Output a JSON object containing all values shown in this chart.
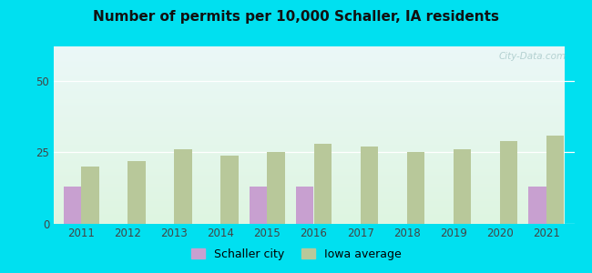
{
  "title": "Number of permits per 10,000 Schaller, IA residents",
  "years": [
    2011,
    2012,
    2013,
    2014,
    2015,
    2016,
    2017,
    2018,
    2019,
    2020,
    2021
  ],
  "schaller_values": [
    13,
    0,
    0,
    0,
    13,
    13,
    0,
    0,
    0,
    0,
    13
  ],
  "iowa_values": [
    20,
    22,
    26,
    24,
    25,
    28,
    27,
    25,
    26,
    29,
    31
  ],
  "schaller_color": "#c8a0d0",
  "iowa_color": "#b8c89a",
  "background_outer": "#00e0f0",
  "ylim": [
    0,
    62
  ],
  "yticks": [
    0,
    25,
    50
  ],
  "bar_width": 0.38,
  "legend_schaller": "Schaller city",
  "legend_iowa": "Iowa average",
  "watermark": "City-Data.com"
}
